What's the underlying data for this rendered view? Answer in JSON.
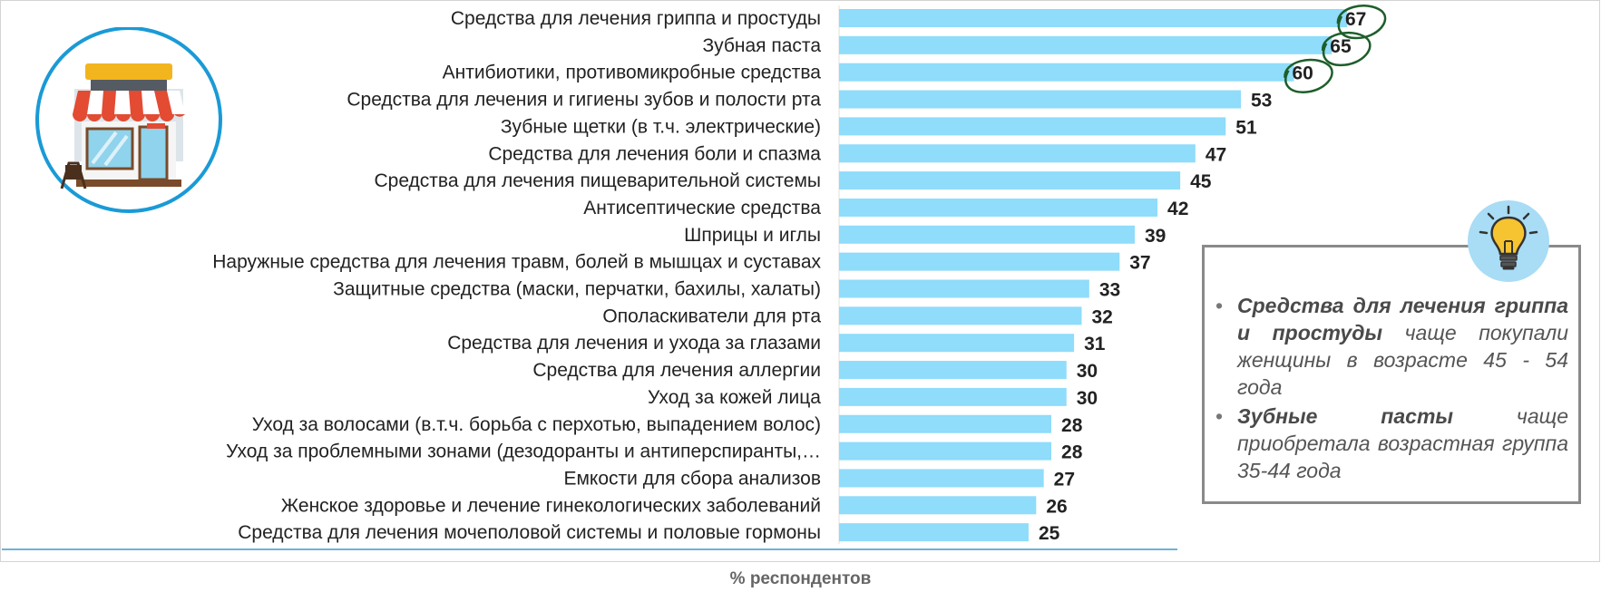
{
  "chart_data": {
    "type": "bar",
    "orientation": "horizontal",
    "categories": [
      "Средства для лечения гриппа и простуды",
      "Зубная паста",
      "Антибиотики, противомикробные средства",
      "Средства для лечения и гигиены зубов и полости рта",
      "Зубные щетки (в т.ч. электрические)",
      "Средства для лечения боли и спазма",
      "Средства для лечения пищеварительной системы",
      "Антисептические средства",
      "Шприцы и иглы",
      "Наружные средства для лечения травм, болей в мышцах и суставах",
      "Защитные средства (маски, перчатки, бахилы, халаты)",
      "Ополаскиватели для рта",
      "Средства для лечения и ухода за глазами",
      "Средства для лечения аллергии",
      "Уход за кожей лица",
      "Уход за волосами (в.т.ч. борьба с перхотью, выпадением волос)",
      "Уход за проблемными зонами (дезодоранты и антиперспиранты,…",
      "Емкости для сбора анализов",
      "Женское здоровье и лечение гинекологических заболеваний",
      "Средства для лечения мочеполовой системы и половые гормоны"
    ],
    "values": [
      67,
      65,
      60,
      53,
      51,
      47,
      45,
      42,
      39,
      37,
      33,
      32,
      31,
      30,
      30,
      28,
      28,
      27,
      26,
      25
    ],
    "highlighted_values": [
      67,
      65,
      60
    ],
    "xlabel": "% респондентов",
    "xlim": [
      0,
      67
    ],
    "grid": false,
    "legend": "none",
    "bar_color": "#8fdcfb",
    "highlight_circle_color": "#1d5e2a"
  },
  "insights": [
    {
      "bold": "Средства для лечения гриппа и простуды",
      "text": " чаще покупали женщины в возрасте 45 - 54 года"
    },
    {
      "bold": "Зубные пасты",
      "text": " чаще приобретала возрастная группа 35-44 года"
    }
  ],
  "icons": {
    "store": "store-illustration",
    "insight": "lightbulb-icon"
  },
  "colors": {
    "store_circle": "#1a9ad6",
    "bulb_circle": "#a9dcf5",
    "bulb": "#f6c431"
  }
}
